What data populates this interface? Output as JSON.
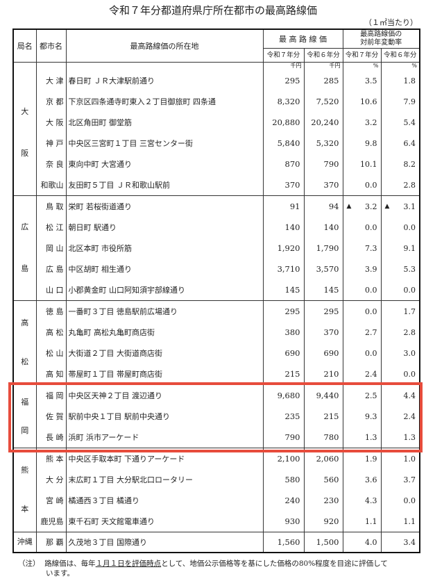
{
  "title": "令和７年分都道府県庁所在都市の最高路線価",
  "unit_note": "（１㎡当たり）",
  "headers": {
    "bureau": "局名",
    "city": "都市名",
    "location": "最高路線価の所在地",
    "price": "最 高 路 線 価",
    "rate": "最高路線価の\n対前年変動率",
    "r7": "令和７年分",
    "r6": "令和６年分",
    "rate_r7": "令和７年分",
    "rate_r6": "令和６年分"
  },
  "units": {
    "price_r7": "千円",
    "price_r6": "千円",
    "rate_r7": "%",
    "rate_r6": "%"
  },
  "highlight_color": "#e74c3c",
  "groups": [
    {
      "bureau": [
        "大",
        "阪"
      ],
      "rows": [
        {
          "city": "大 津",
          "location": "春日町 ＪＲ大津駅前通り",
          "price_r7": "295",
          "price_r6": "285",
          "rate_r7": "3.5",
          "rate_r6": "1.8"
        },
        {
          "city": "京 都",
          "location": "下京区四条通寺町東入２丁目御旅町 四条通",
          "price_r7": "8,320",
          "price_r6": "7,520",
          "rate_r7": "10.6",
          "rate_r6": "7.9"
        },
        {
          "city": "大 阪",
          "location": "北区角田町 御堂筋",
          "price_r7": "20,880",
          "price_r6": "20,240",
          "rate_r7": "3.2",
          "rate_r6": "5.4"
        },
        {
          "city": "神 戸",
          "location": "中央区三宮町１丁目 三宮センター街",
          "price_r7": "5,840",
          "price_r6": "5,320",
          "rate_r7": "9.8",
          "rate_r6": "6.4"
        },
        {
          "city": "奈 良",
          "location": "東向中町 大宮通り",
          "price_r7": "870",
          "price_r6": "790",
          "rate_r7": "10.1",
          "rate_r6": "8.2"
        },
        {
          "city": "和歌山",
          "location": "友田町５丁目 ＪＲ和歌山駅前",
          "price_r7": "370",
          "price_r6": "370",
          "rate_r7": "0.0",
          "rate_r6": "2.8"
        }
      ]
    },
    {
      "bureau": [
        "広",
        "島"
      ],
      "rows": [
        {
          "city": "鳥 取",
          "location": "栄町 若桜街道通り",
          "price_r7": "91",
          "price_r6": "94",
          "rate_r7_sign": "▲",
          "rate_r7": "3.2",
          "rate_r6_sign": "▲",
          "rate_r6": "3.1"
        },
        {
          "city": "松 江",
          "location": "朝日町 駅通り",
          "price_r7": "140",
          "price_r6": "140",
          "rate_r7": "0.0",
          "rate_r6": "0.0"
        },
        {
          "city": "岡 山",
          "location": "北区本町 市役所筋",
          "price_r7": "1,920",
          "price_r6": "1,790",
          "rate_r7": "7.3",
          "rate_r6": "9.1"
        },
        {
          "city": "広 島",
          "location": "中区胡町 相生通り",
          "price_r7": "3,710",
          "price_r6": "3,570",
          "rate_r7": "3.9",
          "rate_r6": "5.3"
        },
        {
          "city": "山 口",
          "location": "小郡黄金町 山口阿知須宇部線通り",
          "price_r7": "145",
          "price_r6": "145",
          "rate_r7": "0.0",
          "rate_r6": "0.0"
        }
      ]
    },
    {
      "bureau": [
        "高",
        "松"
      ],
      "rows": [
        {
          "city": "徳 島",
          "location": "一番町３丁目 徳島駅前広場通り",
          "price_r7": "295",
          "price_r6": "295",
          "rate_r7": "0.0",
          "rate_r6": "1.7"
        },
        {
          "city": "高 松",
          "location": "丸亀町 高松丸亀町商店街",
          "price_r7": "380",
          "price_r6": "370",
          "rate_r7": "2.7",
          "rate_r6": "2.8"
        },
        {
          "city": "松 山",
          "location": "大街道２丁目 大街道商店街",
          "price_r7": "690",
          "price_r6": "690",
          "rate_r7": "0.0",
          "rate_r6": "3.0"
        },
        {
          "city": "高 知",
          "location": "帯屋町１丁目 帯屋町商店街",
          "price_r7": "215",
          "price_r6": "210",
          "rate_r7": "2.4",
          "rate_r6": "0.0"
        }
      ]
    },
    {
      "bureau": [
        "福",
        "岡"
      ],
      "highlighted": true,
      "rows": [
        {
          "city": "福 岡",
          "location": "中央区天神２丁目 渡辺通り",
          "price_r7": "9,680",
          "price_r6": "9,440",
          "rate_r7": "2.5",
          "rate_r6": "4.4"
        },
        {
          "city": "佐 賀",
          "location": "駅前中央１丁目 駅前中央通り",
          "price_r7": "235",
          "price_r6": "215",
          "rate_r7": "9.3",
          "rate_r6": "2.4"
        },
        {
          "city": "長 崎",
          "location": "浜町 浜市アーケード",
          "price_r7": "790",
          "price_r6": "780",
          "rate_r7": "1.3",
          "rate_r6": "1.3"
        }
      ]
    },
    {
      "bureau": [
        "熊",
        "本"
      ],
      "rows": [
        {
          "city": "熊 本",
          "location": "中央区手取本町 下通りアーケード",
          "price_r7": "2,100",
          "price_r6": "2,060",
          "rate_r7": "1.9",
          "rate_r6": "1.0"
        },
        {
          "city": "大 分",
          "location": "末広町１丁目 大分駅北口ロータリー",
          "price_r7": "580",
          "price_r6": "560",
          "rate_r7": "3.6",
          "rate_r6": "3.7"
        },
        {
          "city": "宮 崎",
          "location": "橘通西３丁目 橘通り",
          "price_r7": "240",
          "price_r6": "230",
          "rate_r7": "4.3",
          "rate_r6": "0.0"
        },
        {
          "city": "鹿児島",
          "location": "東千石町 天文館電車通り",
          "price_r7": "930",
          "price_r6": "920",
          "rate_r7": "1.1",
          "rate_r6": "1.1"
        }
      ]
    },
    {
      "bureau": [
        "沖縄"
      ],
      "rows": [
        {
          "city": "那 覇",
          "location": "久茂地３丁目 国際通り",
          "price_r7": "1,560",
          "price_r6": "1,500",
          "rate_r7": "4.0",
          "rate_r6": "3.4"
        }
      ]
    }
  ],
  "note": {
    "label": "（注）",
    "pre": "路線価は、毎年",
    "underlined": "１月１日を評価時点",
    "post": "として、地価公示価格等を基にした価格の80%程度を目途に評価して",
    "line2": "います。"
  }
}
